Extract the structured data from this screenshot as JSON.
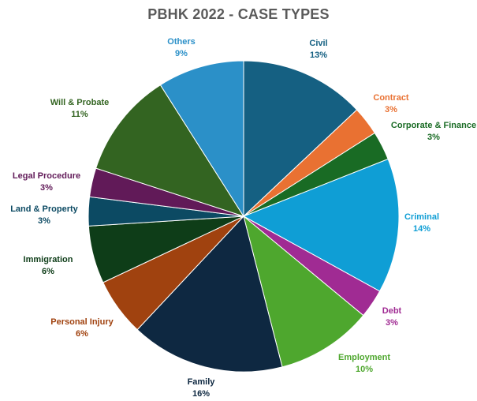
{
  "chart_data": {
    "type": "pie",
    "title": "PBHK 2022 - CASE TYPES",
    "slices": [
      {
        "label": "Civil",
        "value": 13,
        "pct": "13%",
        "color": "#156082"
      },
      {
        "label": "Contract",
        "value": 3,
        "pct": "3%",
        "color": "#E97132"
      },
      {
        "label": "Corporate & Finance",
        "value": 3,
        "pct": "3%",
        "color": "#196B24"
      },
      {
        "label": "Criminal",
        "value": 14,
        "pct": "14%",
        "color": "#0F9ED5"
      },
      {
        "label": "Debt",
        "value": 3,
        "pct": "3%",
        "color": "#A02B93"
      },
      {
        "label": "Employment",
        "value": 10,
        "pct": "10%",
        "color": "#4EA72E"
      },
      {
        "label": "Family",
        "value": 16,
        "pct": "16%",
        "color": "#0E2841"
      },
      {
        "label": "Personal Injury",
        "value": 6,
        "pct": "6%",
        "color": "#A0420F"
      },
      {
        "label": "Immigration",
        "value": 6,
        "pct": "6%",
        "color": "#0E3D18"
      },
      {
        "label": "Land & Property",
        "value": 3,
        "pct": "3%",
        "color": "#0C4A63"
      },
      {
        "label": "Legal Procedure",
        "value": 3,
        "pct": "3%",
        "color": "#611A58"
      },
      {
        "label": "Will & Probate",
        "value": 11,
        "pct": "11%",
        "color": "#336421"
      },
      {
        "label": "Others",
        "value": 9,
        "pct": "9%",
        "color": "#2B90C8"
      }
    ]
  }
}
